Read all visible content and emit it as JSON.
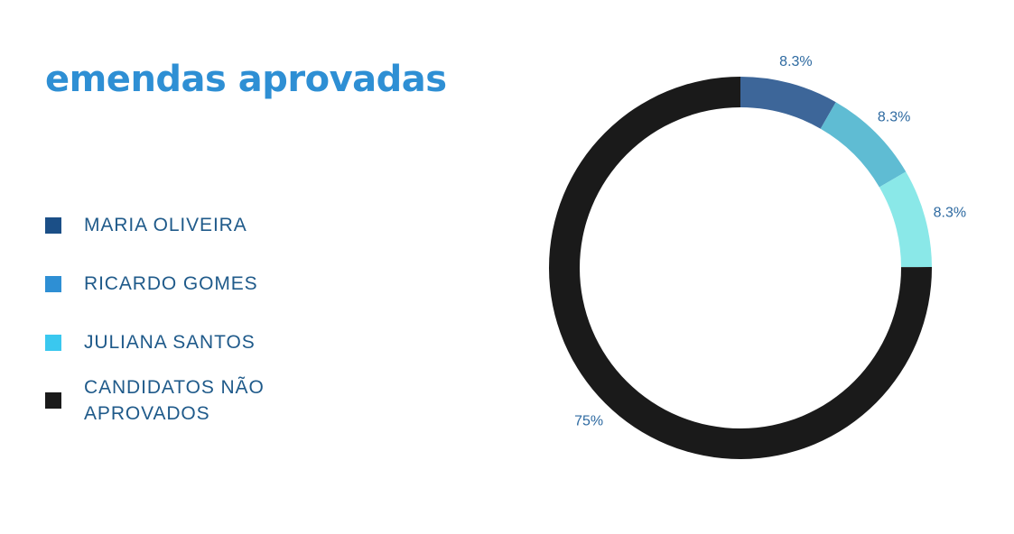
{
  "chart_data": {
    "type": "pie",
    "title": "emendas aprovadas",
    "donut": true,
    "legend_position": "left",
    "categories": [
      "MARIA OLIVEIRA",
      "RICARDO GOMES",
      "JULIANA SANTOS",
      "CANDIDATOS NÃO APROVADOS"
    ],
    "values": [
      8.3,
      8.3,
      8.3,
      75
    ],
    "value_labels": [
      "8.3%",
      "8.3%",
      "8.3%",
      "75%"
    ],
    "legend_colors": [
      "#1b4f87",
      "#2e8fd4",
      "#3ac8ef",
      "#1a1a1a"
    ],
    "slice_colors": [
      "#3d6699",
      "#5fbcd3",
      "#8ae8e8",
      "#1a1a1a"
    ]
  }
}
